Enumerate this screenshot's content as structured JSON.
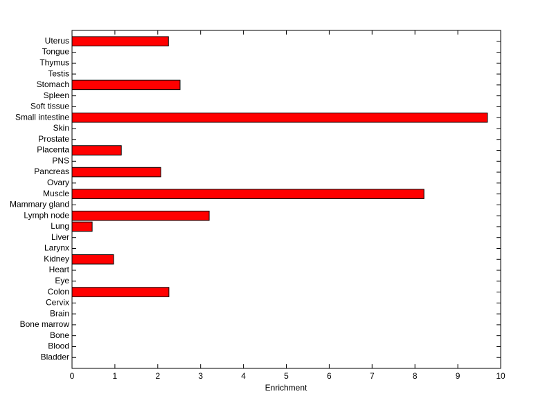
{
  "chart_data": {
    "type": "barh",
    "xlabel": "Enrichment",
    "categories": [
      "Uterus",
      "Tongue",
      "Thymus",
      "Testis",
      "Stomach",
      "Spleen",
      "Soft tissue",
      "Small intestine",
      "Skin",
      "Prostate",
      "Placenta",
      "PNS",
      "Pancreas",
      "Ovary",
      "Muscle",
      "Mammary gland",
      "Lymph node",
      "Lung",
      "Liver",
      "Larynx",
      "Kidney",
      "Heart",
      "Eye",
      "Colon",
      "Cervix",
      "Brain",
      "Bone marrow",
      "Bone",
      "Blood",
      "Bladder"
    ],
    "values": [
      2.25,
      0,
      0,
      0,
      2.52,
      0,
      0,
      9.69,
      0,
      0,
      1.15,
      0,
      2.07,
      0,
      8.21,
      0,
      3.2,
      0.47,
      0,
      0,
      0.97,
      0,
      0,
      2.26,
      0,
      0,
      0,
      0,
      0,
      0
    ],
    "color": "#ff0000",
    "xlim": [
      0,
      10
    ],
    "xticks": [
      0,
      1,
      2,
      3,
      4,
      5,
      6,
      7,
      8,
      9,
      10
    ]
  }
}
